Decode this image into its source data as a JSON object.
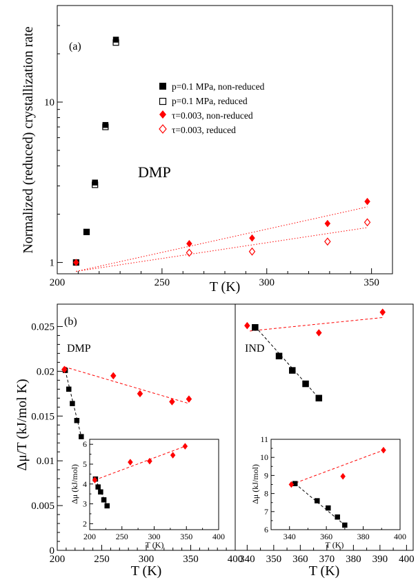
{
  "colors": {
    "red": "#ff0000",
    "black": "#000000"
  },
  "panel_a": {
    "label": "(a)",
    "sample": "DMP",
    "ylabel": "Normalized (reduced) crystallization rate",
    "xlabel": "T (K)",
    "xticks": [
      "200",
      "250",
      "300",
      "350"
    ],
    "yticks": [
      "1",
      "10"
    ],
    "legend": [
      "p=0.1 MPa, non-reduced",
      "p=0.1 MPa, reduced",
      "τ=0.003, non-reduced",
      "τ=0.003, reduced"
    ]
  },
  "panel_b": {
    "label": "(b)",
    "ylabel": "Δμ/T  (kJ/mol K)",
    "yticks": [
      "0",
      "0.005",
      "0.01",
      "0.015",
      "0.02",
      "0.025"
    ],
    "left": {
      "sample": "DMP",
      "xlabel": "T (K)",
      "xticks": [
        "200",
        "250",
        "300",
        "350",
        "400"
      ],
      "inset": {
        "ylabel": "Δμ (kJ/mol)",
        "xlabel": "T (K)",
        "xticks": [
          "200",
          "250",
          "300",
          "350",
          "400"
        ],
        "yticks": [
          "2",
          "3",
          "4",
          "5",
          "6"
        ]
      }
    },
    "right": {
      "sample": "IND",
      "xlabel": "T (K)",
      "xticks": [
        "340",
        "350",
        "360",
        "370",
        "380",
        "390",
        "400"
      ],
      "inset": {
        "ylabel": "Δμ (kJ/mol)",
        "xlabel": "T (K)",
        "xticks": [
          "340",
          "360",
          "380",
          "400"
        ],
        "yticks": [
          "6",
          "7",
          "8",
          "9",
          "10",
          "11"
        ]
      }
    }
  },
  "chart_data": [
    {
      "type": "scatter",
      "panel": "(a)",
      "xlabel": "T (K)",
      "ylabel": "Normalized (reduced) crystallization rate",
      "xlim": [
        200,
        360
      ],
      "ylim": [
        0.85,
        40
      ],
      "yscale": "log",
      "legend_position": "top-right",
      "series": [
        {
          "name": "p=0.1 MPa, non-reduced",
          "marker": "filled-square",
          "color": "#000000",
          "x": [
            209,
            214,
            218,
            223,
            228
          ],
          "y": [
            1.0,
            1.55,
            3.15,
            7.2,
            24.5
          ]
        },
        {
          "name": "p=0.1 MPa, reduced",
          "marker": "open-square",
          "color": "#000000",
          "x": [
            209,
            214,
            218,
            223,
            228
          ],
          "y": [
            1.0,
            1.55,
            3.05,
            7.0,
            23.5
          ]
        },
        {
          "name": "τ=0.003, non-reduced",
          "marker": "filled-diamond",
          "color": "#ff0000",
          "x": [
            209,
            263,
            293,
            329,
            348
          ],
          "y": [
            1.0,
            1.31,
            1.42,
            1.75,
            2.4
          ]
        },
        {
          "name": "τ=0.003, reduced",
          "marker": "open-diamond",
          "color": "#ff0000",
          "x": [
            263,
            293,
            329,
            348
          ],
          "y": [
            1.15,
            1.17,
            1.35,
            1.78
          ]
        }
      ],
      "fit_lines": [
        {
          "color": "#ff0000",
          "style": "dotted",
          "x": [
            209,
            348
          ],
          "y": [
            0.88,
            2.22
          ]
        },
        {
          "color": "#ff0000",
          "style": "dotted",
          "x": [
            209,
            348
          ],
          "y": [
            0.88,
            1.65
          ]
        }
      ]
    },
    {
      "type": "scatter",
      "panel": "(b) DMP",
      "xlabel": "T (K)",
      "ylabel": "Δμ/T  (kJ/mol K)",
      "xlim": [
        200,
        400
      ],
      "ylim": [
        0,
        0.0275
      ],
      "series": [
        {
          "marker": "filled-square",
          "color": "#000000",
          "x": [
            209,
            213,
            217,
            222,
            227
          ],
          "y": [
            0.0201,
            0.018,
            0.0164,
            0.0145,
            0.0127
          ]
        },
        {
          "marker": "filled-diamond",
          "color": "#ff0000",
          "x": [
            208,
            263,
            293,
            329,
            348
          ],
          "y": [
            0.0202,
            0.0195,
            0.0175,
            0.0166,
            0.0169
          ]
        }
      ],
      "fit_lines": [
        {
          "color": "#000000",
          "style": "dashed",
          "x": [
            209,
            227
          ],
          "y": [
            0.0201,
            0.0127
          ]
        },
        {
          "color": "#ff0000",
          "style": "dashed",
          "x": [
            208,
            348
          ],
          "y": [
            0.0205,
            0.0164
          ]
        }
      ],
      "inset": {
        "xlabel": "T (K)",
        "ylabel": "Δμ (kJ/mol)",
        "xlim": [
          200,
          400
        ],
        "ylim": [
          2,
          6
        ],
        "series": [
          {
            "marker": "filled-square",
            "color": "#000000",
            "x": [
              209,
              213,
              217,
              222,
              227
            ],
            "y": [
              4.25,
              3.85,
              3.6,
              3.2,
              2.9
            ]
          },
          {
            "marker": "filled-diamond",
            "color": "#ff0000",
            "x": [
              208,
              263,
              293,
              329,
              348
            ],
            "y": [
              4.2,
              5.1,
              5.15,
              5.45,
              5.9
            ]
          }
        ]
      }
    },
    {
      "type": "scatter",
      "panel": "(b) IND",
      "xlabel": "T (K)",
      "ylabel": "Δμ/T  (kJ/mol K)",
      "xlim": [
        340,
        400
      ],
      "ylim": [
        0,
        0.0275
      ],
      "series": [
        {
          "marker": "filled-square",
          "color": "#000000",
          "x": [
            343,
            352,
            357,
            362,
            367
          ],
          "y": [
            0.0249,
            0.0217,
            0.0201,
            0.0186,
            0.017
          ]
        },
        {
          "marker": "filled-diamond",
          "color": "#ff0000",
          "x": [
            340,
            367,
            391
          ],
          "y": [
            0.0251,
            0.0243,
            0.0266
          ]
        }
      ],
      "fit_lines": [
        {
          "color": "#000000",
          "style": "dashed",
          "x": [
            343,
            367
          ],
          "y": [
            0.025,
            0.017
          ]
        },
        {
          "color": "#ff0000",
          "style": "dashed",
          "x": [
            341,
            391
          ],
          "y": [
            0.0245,
            0.026
          ]
        }
      ],
      "inset": {
        "xlabel": "T (K)",
        "ylabel": "Δμ (kJ/mol)",
        "xlim": [
          330,
          400
        ],
        "ylim": [
          6,
          11
        ],
        "series": [
          {
            "marker": "filled-square",
            "color": "#000000",
            "x": [
              343,
              355,
              361,
              366,
              370
            ],
            "y": [
              8.55,
              7.6,
              7.2,
              6.7,
              6.25
            ]
          },
          {
            "marker": "filled-diamond",
            "color": "#ff0000",
            "x": [
              341,
              369,
              391
            ],
            "y": [
              8.5,
              8.95,
              10.4
            ]
          }
        ]
      }
    }
  ]
}
